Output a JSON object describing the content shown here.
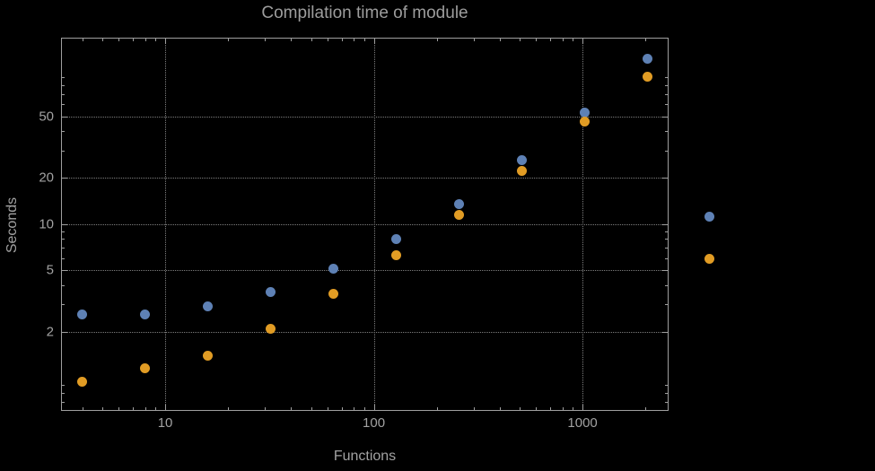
{
  "title": "Compilation time of module",
  "colors": {
    "background": "#000000",
    "frame": "#9f9f9f",
    "grid": "#7e7e7e",
    "text": "#a2a2a2",
    "title_text": "#9d9d9d",
    "series1": "#5e81b5",
    "series2": "#e19c24"
  },
  "chart_data": {
    "type": "scatter",
    "title": "Compilation time of module",
    "xlabel": "Functions",
    "ylabel": "Seconds",
    "xscale": "log",
    "yscale": "log",
    "xlim": [
      3.2,
      2560
    ],
    "ylim": [
      0.62,
      160
    ],
    "xticks": [
      10,
      100,
      1000
    ],
    "yticks": [
      2,
      5,
      10,
      20,
      50
    ],
    "grid": true,
    "x": [
      4,
      8,
      16,
      32,
      64,
      128,
      256,
      512,
      1024,
      2048
    ],
    "series": [
      {
        "name": "series-1",
        "color": "#5e81b5",
        "values": [
          2.6,
          2.6,
          2.9,
          3.6,
          5.1,
          8.0,
          13.5,
          26,
          53,
          118
        ]
      },
      {
        "name": "series-2",
        "color": "#e19c24",
        "values": [
          0.95,
          1.15,
          1.4,
          2.1,
          3.5,
          6.3,
          11.5,
          22,
          46,
          90
        ]
      }
    ],
    "legend": {
      "position": "right-outside",
      "items": [
        {
          "series": "series-1",
          "color": "#5e81b5",
          "label": "",
          "marker_y_value": 11
        },
        {
          "series": "series-2",
          "color": "#e19c24",
          "label": "",
          "marker_y_value": 5.9
        }
      ]
    }
  }
}
